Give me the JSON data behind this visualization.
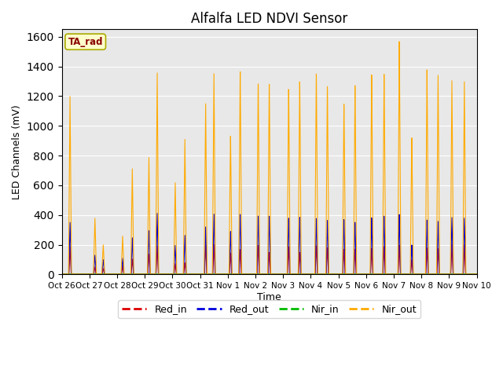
{
  "title": "Alfalfa LED NDVI Sensor",
  "ylabel": "LED Channels (mV)",
  "xlabel": "Time",
  "legend_label": "TA_rad",
  "ylim": [
    0,
    1650
  ],
  "yticks": [
    0,
    200,
    400,
    600,
    800,
    1000,
    1200,
    1400,
    1600
  ],
  "x_tick_labels": [
    "Oct 26",
    "Oct 27",
    "Oct 28",
    "Oct 29",
    "Oct 30",
    "Oct 31",
    "Nov 1",
    "Nov 2",
    "Nov 3",
    "Nov 4",
    "Nov 5",
    "Nov 6",
    "Nov 7",
    "Nov 8",
    "Nov 9",
    "Nov 10"
  ],
  "colors": {
    "Red_in": "#dd0000",
    "Red_out": "#0000dd",
    "Nir_in": "#00bb00",
    "Nir_out": "#ffaa00"
  },
  "background_color": "#e8e8e8",
  "legend_box_color": "#ffffcc",
  "legend_box_edge": "#aaaa00"
}
